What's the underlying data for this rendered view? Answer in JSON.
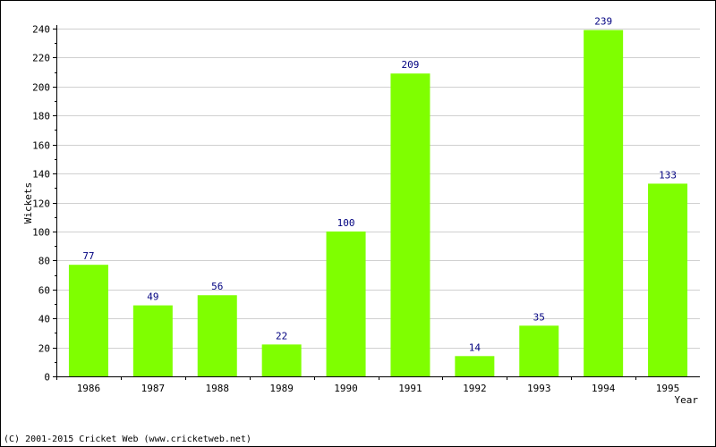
{
  "chart_data": {
    "type": "bar",
    "categories": [
      "1986",
      "1987",
      "1988",
      "1989",
      "1990",
      "1991",
      "1992",
      "1993",
      "1994",
      "1995"
    ],
    "values": [
      77,
      49,
      56,
      22,
      100,
      209,
      14,
      35,
      239,
      133
    ],
    "title": "",
    "xlabel": "Year",
    "ylabel": "Wickets",
    "ylim": [
      0,
      240
    ],
    "yticks": [
      0,
      20,
      40,
      60,
      80,
      100,
      120,
      140,
      160,
      180,
      200,
      220,
      240
    ],
    "grid": true,
    "data_labels": true,
    "legend": "none",
    "bar_color": "#7fff00",
    "label_color": "#000080"
  },
  "footer": "(C) 2001-2015 Cricket Web (www.cricketweb.net)"
}
